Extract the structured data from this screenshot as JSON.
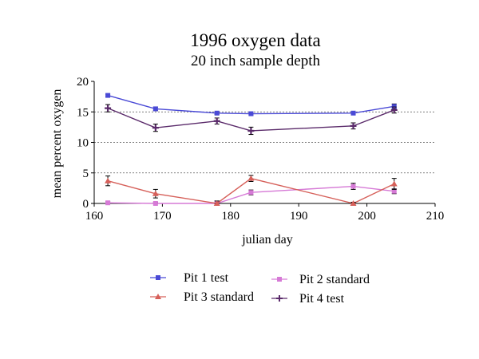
{
  "chart_data": {
    "type": "line",
    "title": "1996 oxygen data",
    "subtitle": "20 inch sample depth",
    "xlabel": "julian day",
    "ylabel": "mean percent oxygen",
    "xlim": [
      160,
      210
    ],
    "ylim": [
      0,
      20
    ],
    "x_ticks": [
      "160",
      "170",
      "180",
      "190",
      "200",
      "210"
    ],
    "y_ticks": [
      "0",
      "5",
      "10",
      "15",
      "20"
    ],
    "gridlines_y": [
      5,
      10,
      15
    ],
    "legend_position": "bottom",
    "series": [
      {
        "name": "Pit 1 test",
        "color": "#4a4ad6",
        "marker": "square",
        "x": [
          162,
          169,
          178,
          183,
          198,
          204
        ],
        "y": [
          17.7,
          15.5,
          14.8,
          14.7,
          14.8,
          15.9
        ],
        "err": [
          0.2,
          0.3,
          0.2,
          0.2,
          0.2,
          0.4
        ]
      },
      {
        "name": "Pit 2 standard",
        "color": "#d67ad6",
        "marker": "square",
        "x": [
          162,
          169,
          178,
          183,
          198,
          204
        ],
        "y": [
          0.1,
          0.0,
          0.0,
          1.8,
          2.8,
          2.0
        ],
        "err": [
          0.2,
          0.2,
          0.4,
          0.4,
          0.5,
          0.4
        ]
      },
      {
        "name": "Pit 3 standard",
        "color": "#d6605a",
        "marker": "triangle",
        "x": [
          162,
          169,
          178,
          183,
          198,
          204
        ],
        "y": [
          3.7,
          1.6,
          0.0,
          4.1,
          0.0,
          3.2
        ],
        "err": [
          0.8,
          0.7,
          0.4,
          0.5,
          0.2,
          0.9
        ]
      },
      {
        "name": "Pit 4 test",
        "color": "#5a2a6a",
        "marker": "cross",
        "x": [
          162,
          169,
          178,
          183,
          198,
          204
        ],
        "y": [
          15.6,
          12.4,
          13.5,
          11.9,
          12.7,
          15.3
        ],
        "err": [
          0.6,
          0.6,
          0.5,
          0.6,
          0.5,
          0.5
        ]
      }
    ]
  }
}
